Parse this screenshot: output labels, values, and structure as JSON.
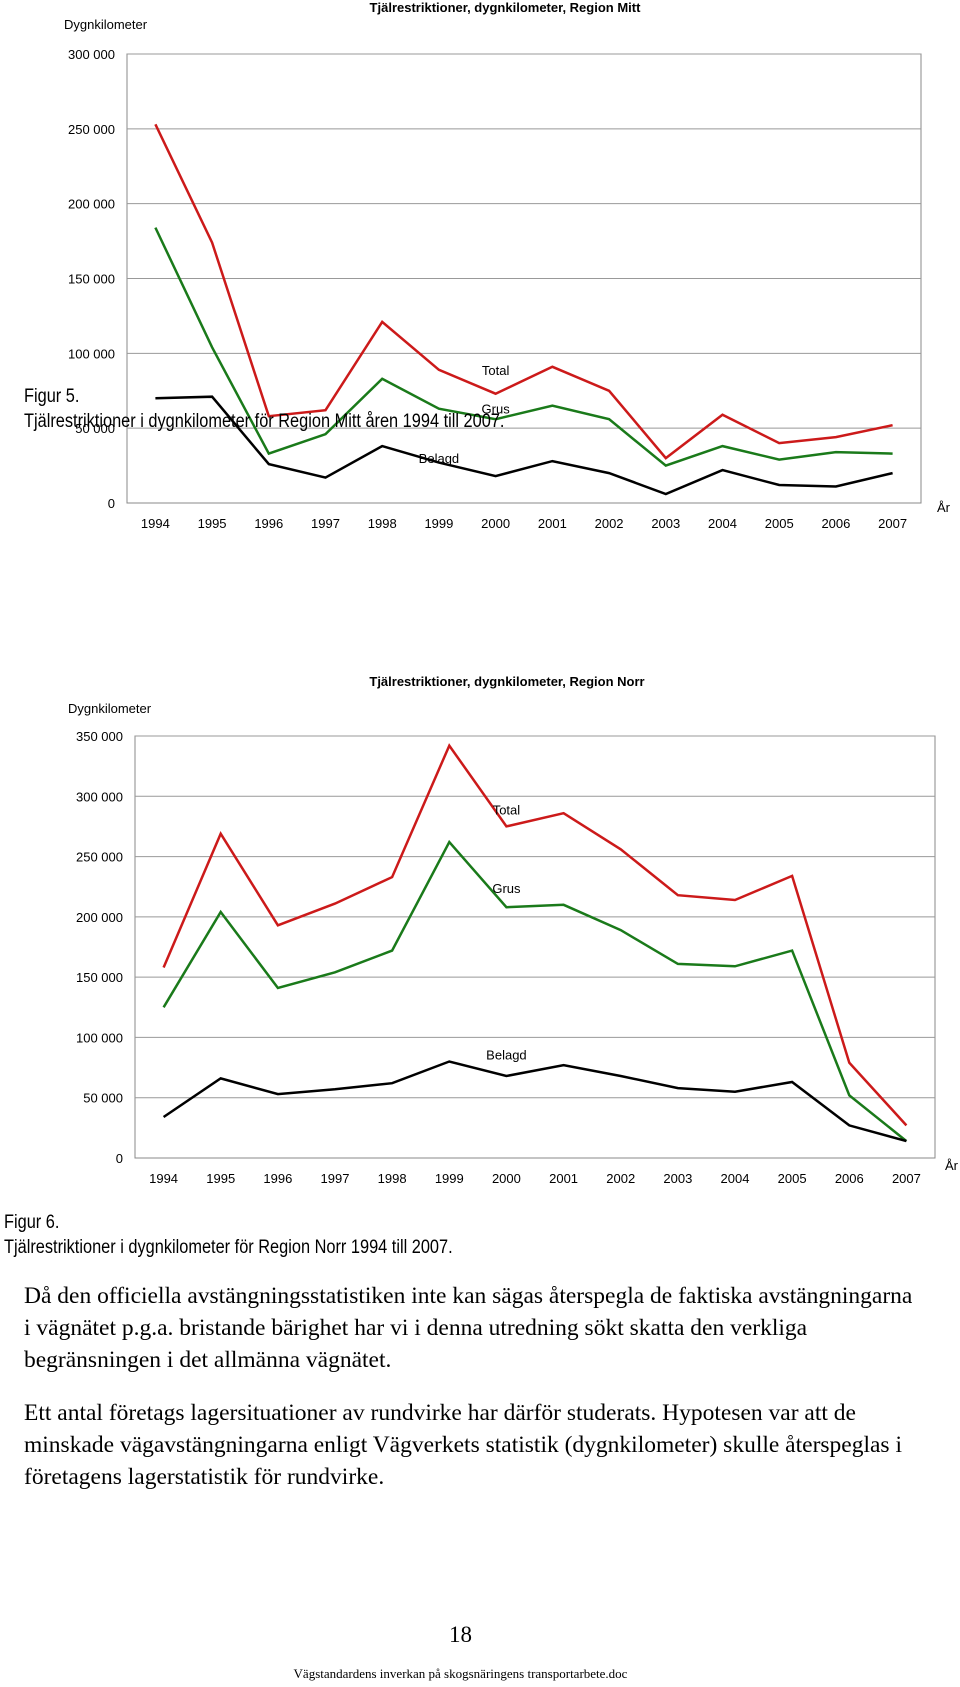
{
  "chart_data": [
    {
      "type": "line",
      "title": "Tjälrestriktioner, dygnkilometer, Region Mitt",
      "ylabel": "Dygnkilometer",
      "xlabel": "År",
      "ylim": [
        0,
        300000
      ],
      "yticks": [
        0,
        50000,
        100000,
        150000,
        200000,
        250000,
        300000
      ],
      "ytick_labels": [
        "0",
        "50 000",
        "100 000",
        "150 000",
        "200 000",
        "250 000",
        "300 000"
      ],
      "categories": [
        "1994",
        "1995",
        "1996",
        "1997",
        "1998",
        "1999",
        "2000",
        "2001",
        "2002",
        "2003",
        "2004",
        "2005",
        "2006",
        "2007"
      ],
      "grid": true,
      "series": [
        {
          "name": "Total",
          "color": "#cc1a1a",
          "values": [
            253000,
            174000,
            58000,
            62000,
            121000,
            89000,
            73000,
            91000,
            75000,
            30000,
            59000,
            40000,
            44000,
            52000
          ]
        },
        {
          "name": "Grus",
          "color": "#1a7a1a",
          "values": [
            184000,
            104000,
            33000,
            46000,
            83000,
            63000,
            56000,
            65000,
            56000,
            25000,
            38000,
            29000,
            34000,
            33000
          ]
        },
        {
          "name": "Belagd",
          "color": "#000000",
          "values": [
            70000,
            71000,
            26000,
            17000,
            38000,
            27000,
            18000,
            28000,
            20000,
            6000,
            22000,
            12000,
            11000,
            20000
          ]
        }
      ],
      "series_labels": [
        {
          "name": "Total",
          "at_category": "2000",
          "value": 89000
        },
        {
          "name": "Grus",
          "at_category": "2000",
          "value": 63000
        },
        {
          "name": "Belagd",
          "at_category": "1999",
          "value": 30000
        }
      ]
    },
    {
      "type": "line",
      "title": "Tjälrestriktioner, dygnkilometer, Region Norr",
      "ylabel": "Dygnkilometer",
      "xlabel": "År",
      "ylim": [
        0,
        350000
      ],
      "yticks": [
        0,
        50000,
        100000,
        150000,
        200000,
        250000,
        300000,
        350000
      ],
      "ytick_labels": [
        "0",
        "50 000",
        "100 000",
        "150 000",
        "200 000",
        "250 000",
        "300 000",
        "350 000"
      ],
      "categories": [
        "1994",
        "1995",
        "1996",
        "1997",
        "1998",
        "1999",
        "2000",
        "2001",
        "2002",
        "2003",
        "2004",
        "2005",
        "2006",
        "2007"
      ],
      "grid": true,
      "series": [
        {
          "name": "Total",
          "color": "#cc1a1a",
          "values": [
            158000,
            269000,
            193000,
            211000,
            233000,
            342000,
            275000,
            286000,
            256000,
            218000,
            214000,
            234000,
            79000,
            27000
          ]
        },
        {
          "name": "Grus",
          "color": "#1a7a1a",
          "values": [
            125000,
            204000,
            141000,
            154000,
            172000,
            262000,
            208000,
            210000,
            189000,
            161000,
            159000,
            172000,
            52000,
            14000
          ]
        },
        {
          "name": "Belagd",
          "color": "#000000",
          "values": [
            34000,
            66000,
            53000,
            57000,
            62000,
            80000,
            68000,
            77000,
            68000,
            58000,
            55000,
            63000,
            27000,
            14000
          ]
        }
      ],
      "series_labels": [
        {
          "name": "Total",
          "at_category": "2000",
          "value": 289000
        },
        {
          "name": "Grus",
          "at_category": "2000",
          "value": 224000
        },
        {
          "name": "Belagd",
          "at_category": "2000",
          "value": 86000
        }
      ]
    }
  ],
  "captions": [
    {
      "figure": "Figur 5.",
      "text": "Tjälrestriktioner i dygnkilometer för Region Mitt åren 1994 till 2007."
    },
    {
      "figure": "Figur 6.",
      "text": "Tjälrestriktioner i dygnkilometer för Region Norr 1994 till 2007."
    }
  ],
  "paragraphs": [
    "Då den officiella avstängningsstatistiken inte kan sägas återspegla de faktiska avstängningarna i vägnätet p.g.a. bristande bärighet har vi i denna utredning sökt skatta den verkliga begränsningen i det allmänna vägnätet.",
    "Ett antal företags lagersituationer av rundvirke har därför studerats. Hypotesen var att de minskade vägavstängningarna enligt Vägverkets statistik (dygnkilometer) skulle återspeglas i företagens lagerstatistik för rundvirke."
  ],
  "page_number": "18",
  "footer": "Vägstandardens inverkan på skogsnäringens transportarbete.doc"
}
